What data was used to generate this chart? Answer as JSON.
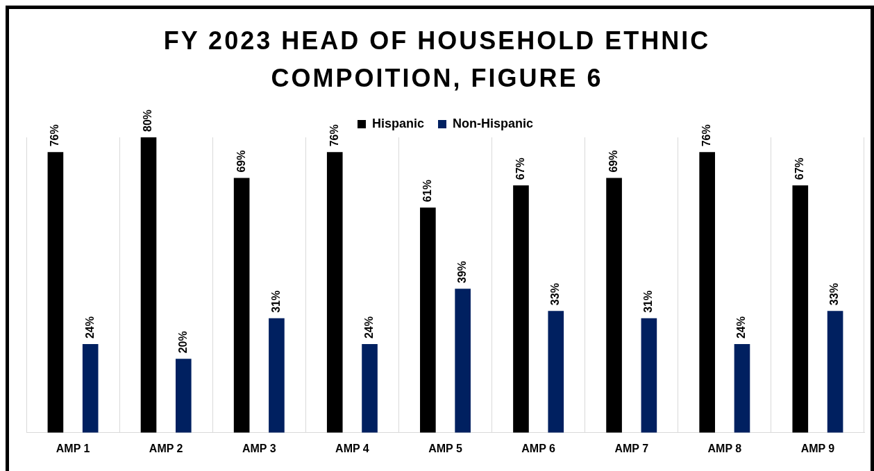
{
  "chart_data": {
    "type": "bar",
    "title": "FY 2023 HEAD OF HOUSEHOLD ETHNIC COMPOITION, FIGURE 6",
    "categories": [
      "AMP 1",
      "AMP 2",
      "AMP 3",
      "AMP 4",
      "AMP 5",
      "AMP 6",
      "AMP 7",
      "AMP 8",
      "AMP 9"
    ],
    "series": [
      {
        "name": "Hispanic",
        "color": "#000000",
        "values": [
          76,
          80,
          69,
          76,
          61,
          67,
          69,
          76,
          67
        ],
        "value_labels": [
          "76%",
          "80%",
          "69%",
          "76%",
          "61%",
          "67%",
          "69%",
          "76%",
          "67%"
        ]
      },
      {
        "name": "Non-Hispanic",
        "color": "#002060",
        "values": [
          24,
          20,
          31,
          24,
          39,
          33,
          31,
          24,
          33
        ],
        "value_labels": [
          "24%",
          "20%",
          "31%",
          "24%",
          "39%",
          "33%",
          "31%",
          "24%",
          "33%"
        ]
      }
    ],
    "grid": "x",
    "legend": "top"
  }
}
